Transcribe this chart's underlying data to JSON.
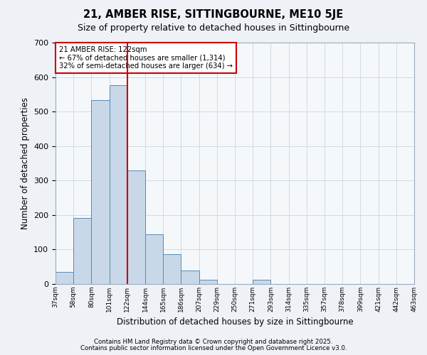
{
  "title": "21, AMBER RISE, SITTINGBOURNE, ME10 5JE",
  "subtitle": "Size of property relative to detached houses in Sittingbourne",
  "xlabel": "Distribution of detached houses by size in Sittingbourne",
  "ylabel": "Number of detached properties",
  "bin_labels": [
    "37sqm",
    "58sqm",
    "80sqm",
    "101sqm",
    "122sqm",
    "144sqm",
    "165sqm",
    "186sqm",
    "207sqm",
    "229sqm",
    "250sqm",
    "271sqm",
    "293sqm",
    "314sqm",
    "335sqm",
    "357sqm",
    "378sqm",
    "399sqm",
    "421sqm",
    "442sqm",
    "463sqm"
  ],
  "values": [
    35,
    192,
    533,
    577,
    330,
    144,
    87,
    40,
    13,
    0,
    0,
    13,
    0,
    0,
    0,
    0,
    0,
    0,
    0,
    0
  ],
  "bar_color": "#c8d8e8",
  "bar_edge_color": "#5a8ab0",
  "vline_index": 4,
  "vline_color": "#cc0000",
  "annotation_line1": "21 AMBER RISE: 122sqm",
  "annotation_line2": "← 67% of detached houses are smaller (1,314)",
  "annotation_line3": "32% of semi-detached houses are larger (634) →",
  "annotation_box_color": "#ffffff",
  "annotation_box_edge_color": "#cc0000",
  "ylim": [
    0,
    700
  ],
  "yticks": [
    0,
    100,
    200,
    300,
    400,
    500,
    600,
    700
  ],
  "footer1": "Contains HM Land Registry data © Crown copyright and database right 2025.",
  "footer2": "Contains public sector information licensed under the Open Government Licence v3.0.",
  "bg_color": "#eef2f6",
  "plot_bg_color": "#f5f8fb",
  "grid_color": "#ccd5de"
}
